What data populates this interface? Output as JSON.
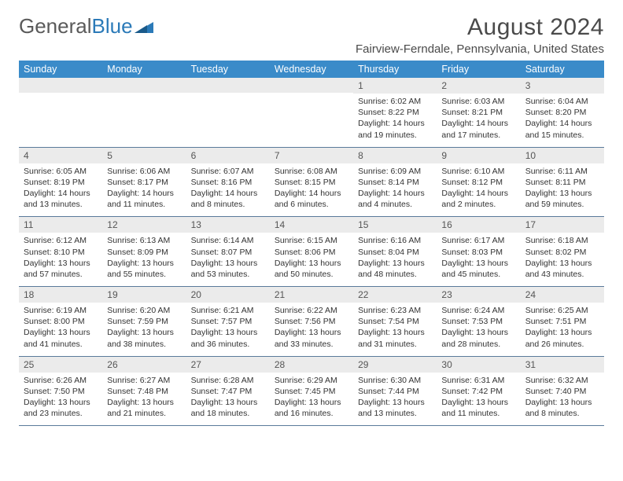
{
  "logo": {
    "text1": "General",
    "text2": "Blue"
  },
  "title": "August 2024",
  "subtitle": "Fairview-Ferndale, Pennsylvania, United States",
  "colors": {
    "header_bg": "#3a8bc9",
    "header_text": "#ffffff",
    "daynum_bg": "#ebebeb",
    "row_border": "#5a7a9a",
    "logo_gray": "#5a5a5a",
    "logo_blue": "#2b7ab8",
    "body_text": "#333333",
    "title_text": "#4a4a4a"
  },
  "typography": {
    "title_fontsize": 30,
    "subtitle_fontsize": 15,
    "header_fontsize": 12.5,
    "daynum_fontsize": 12,
    "body_fontsize": 10.5
  },
  "day_headers": [
    "Sunday",
    "Monday",
    "Tuesday",
    "Wednesday",
    "Thursday",
    "Friday",
    "Saturday"
  ],
  "weeks": [
    [
      {
        "n": "",
        "l1": "",
        "l2": "",
        "l3": "",
        "l4": ""
      },
      {
        "n": "",
        "l1": "",
        "l2": "",
        "l3": "",
        "l4": ""
      },
      {
        "n": "",
        "l1": "",
        "l2": "",
        "l3": "",
        "l4": ""
      },
      {
        "n": "",
        "l1": "",
        "l2": "",
        "l3": "",
        "l4": ""
      },
      {
        "n": "1",
        "l1": "Sunrise: 6:02 AM",
        "l2": "Sunset: 8:22 PM",
        "l3": "Daylight: 14 hours",
        "l4": "and 19 minutes."
      },
      {
        "n": "2",
        "l1": "Sunrise: 6:03 AM",
        "l2": "Sunset: 8:21 PM",
        "l3": "Daylight: 14 hours",
        "l4": "and 17 minutes."
      },
      {
        "n": "3",
        "l1": "Sunrise: 6:04 AM",
        "l2": "Sunset: 8:20 PM",
        "l3": "Daylight: 14 hours",
        "l4": "and 15 minutes."
      }
    ],
    [
      {
        "n": "4",
        "l1": "Sunrise: 6:05 AM",
        "l2": "Sunset: 8:19 PM",
        "l3": "Daylight: 14 hours",
        "l4": "and 13 minutes."
      },
      {
        "n": "5",
        "l1": "Sunrise: 6:06 AM",
        "l2": "Sunset: 8:17 PM",
        "l3": "Daylight: 14 hours",
        "l4": "and 11 minutes."
      },
      {
        "n": "6",
        "l1": "Sunrise: 6:07 AM",
        "l2": "Sunset: 8:16 PM",
        "l3": "Daylight: 14 hours",
        "l4": "and 8 minutes."
      },
      {
        "n": "7",
        "l1": "Sunrise: 6:08 AM",
        "l2": "Sunset: 8:15 PM",
        "l3": "Daylight: 14 hours",
        "l4": "and 6 minutes."
      },
      {
        "n": "8",
        "l1": "Sunrise: 6:09 AM",
        "l2": "Sunset: 8:14 PM",
        "l3": "Daylight: 14 hours",
        "l4": "and 4 minutes."
      },
      {
        "n": "9",
        "l1": "Sunrise: 6:10 AM",
        "l2": "Sunset: 8:12 PM",
        "l3": "Daylight: 14 hours",
        "l4": "and 2 minutes."
      },
      {
        "n": "10",
        "l1": "Sunrise: 6:11 AM",
        "l2": "Sunset: 8:11 PM",
        "l3": "Daylight: 13 hours",
        "l4": "and 59 minutes."
      }
    ],
    [
      {
        "n": "11",
        "l1": "Sunrise: 6:12 AM",
        "l2": "Sunset: 8:10 PM",
        "l3": "Daylight: 13 hours",
        "l4": "and 57 minutes."
      },
      {
        "n": "12",
        "l1": "Sunrise: 6:13 AM",
        "l2": "Sunset: 8:09 PM",
        "l3": "Daylight: 13 hours",
        "l4": "and 55 minutes."
      },
      {
        "n": "13",
        "l1": "Sunrise: 6:14 AM",
        "l2": "Sunset: 8:07 PM",
        "l3": "Daylight: 13 hours",
        "l4": "and 53 minutes."
      },
      {
        "n": "14",
        "l1": "Sunrise: 6:15 AM",
        "l2": "Sunset: 8:06 PM",
        "l3": "Daylight: 13 hours",
        "l4": "and 50 minutes."
      },
      {
        "n": "15",
        "l1": "Sunrise: 6:16 AM",
        "l2": "Sunset: 8:04 PM",
        "l3": "Daylight: 13 hours",
        "l4": "and 48 minutes."
      },
      {
        "n": "16",
        "l1": "Sunrise: 6:17 AM",
        "l2": "Sunset: 8:03 PM",
        "l3": "Daylight: 13 hours",
        "l4": "and 45 minutes."
      },
      {
        "n": "17",
        "l1": "Sunrise: 6:18 AM",
        "l2": "Sunset: 8:02 PM",
        "l3": "Daylight: 13 hours",
        "l4": "and 43 minutes."
      }
    ],
    [
      {
        "n": "18",
        "l1": "Sunrise: 6:19 AM",
        "l2": "Sunset: 8:00 PM",
        "l3": "Daylight: 13 hours",
        "l4": "and 41 minutes."
      },
      {
        "n": "19",
        "l1": "Sunrise: 6:20 AM",
        "l2": "Sunset: 7:59 PM",
        "l3": "Daylight: 13 hours",
        "l4": "and 38 minutes."
      },
      {
        "n": "20",
        "l1": "Sunrise: 6:21 AM",
        "l2": "Sunset: 7:57 PM",
        "l3": "Daylight: 13 hours",
        "l4": "and 36 minutes."
      },
      {
        "n": "21",
        "l1": "Sunrise: 6:22 AM",
        "l2": "Sunset: 7:56 PM",
        "l3": "Daylight: 13 hours",
        "l4": "and 33 minutes."
      },
      {
        "n": "22",
        "l1": "Sunrise: 6:23 AM",
        "l2": "Sunset: 7:54 PM",
        "l3": "Daylight: 13 hours",
        "l4": "and 31 minutes."
      },
      {
        "n": "23",
        "l1": "Sunrise: 6:24 AM",
        "l2": "Sunset: 7:53 PM",
        "l3": "Daylight: 13 hours",
        "l4": "and 28 minutes."
      },
      {
        "n": "24",
        "l1": "Sunrise: 6:25 AM",
        "l2": "Sunset: 7:51 PM",
        "l3": "Daylight: 13 hours",
        "l4": "and 26 minutes."
      }
    ],
    [
      {
        "n": "25",
        "l1": "Sunrise: 6:26 AM",
        "l2": "Sunset: 7:50 PM",
        "l3": "Daylight: 13 hours",
        "l4": "and 23 minutes."
      },
      {
        "n": "26",
        "l1": "Sunrise: 6:27 AM",
        "l2": "Sunset: 7:48 PM",
        "l3": "Daylight: 13 hours",
        "l4": "and 21 minutes."
      },
      {
        "n": "27",
        "l1": "Sunrise: 6:28 AM",
        "l2": "Sunset: 7:47 PM",
        "l3": "Daylight: 13 hours",
        "l4": "and 18 minutes."
      },
      {
        "n": "28",
        "l1": "Sunrise: 6:29 AM",
        "l2": "Sunset: 7:45 PM",
        "l3": "Daylight: 13 hours",
        "l4": "and 16 minutes."
      },
      {
        "n": "29",
        "l1": "Sunrise: 6:30 AM",
        "l2": "Sunset: 7:44 PM",
        "l3": "Daylight: 13 hours",
        "l4": "and 13 minutes."
      },
      {
        "n": "30",
        "l1": "Sunrise: 6:31 AM",
        "l2": "Sunset: 7:42 PM",
        "l3": "Daylight: 13 hours",
        "l4": "and 11 minutes."
      },
      {
        "n": "31",
        "l1": "Sunrise: 6:32 AM",
        "l2": "Sunset: 7:40 PM",
        "l3": "Daylight: 13 hours",
        "l4": "and 8 minutes."
      }
    ]
  ]
}
